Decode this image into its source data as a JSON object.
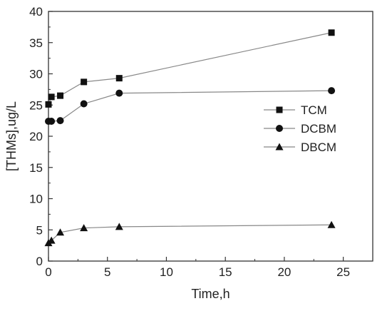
{
  "chart_data": {
    "type": "line",
    "title": "",
    "xlabel": "Time,h",
    "ylabel": "[THMs],ug/L",
    "xlim": [
      0,
      27.5
    ],
    "ylim": [
      0,
      40
    ],
    "xticks": [
      0,
      5,
      10,
      15,
      20,
      25
    ],
    "yticks": [
      0,
      5,
      10,
      15,
      20,
      25,
      30,
      35,
      40
    ],
    "xtick_labels": [
      "0",
      "5",
      "10",
      "15",
      "20",
      "25"
    ],
    "ytick_labels": [
      "0",
      "5",
      "10",
      "15",
      "20",
      "25",
      "30",
      "35",
      "40"
    ],
    "grid": false,
    "legend_position": "right",
    "line_color": "#888888",
    "marker_color": "#111111",
    "series": [
      {
        "name": "TCM",
        "marker": "square",
        "x": [
          0,
          0.25,
          1,
          3,
          6,
          24
        ],
        "y": [
          25.1,
          26.3,
          26.5,
          28.7,
          29.3,
          36.6
        ]
      },
      {
        "name": "DCBM",
        "marker": "circle",
        "x": [
          0,
          0.25,
          1,
          3,
          6,
          24
        ],
        "y": [
          22.4,
          22.4,
          22.5,
          25.2,
          26.9,
          27.3
        ]
      },
      {
        "name": "DBCM",
        "marker": "triangle",
        "x": [
          0,
          0.25,
          1,
          3,
          6,
          24
        ],
        "y": [
          2.9,
          3.3,
          4.6,
          5.3,
          5.5,
          5.8
        ]
      }
    ]
  }
}
